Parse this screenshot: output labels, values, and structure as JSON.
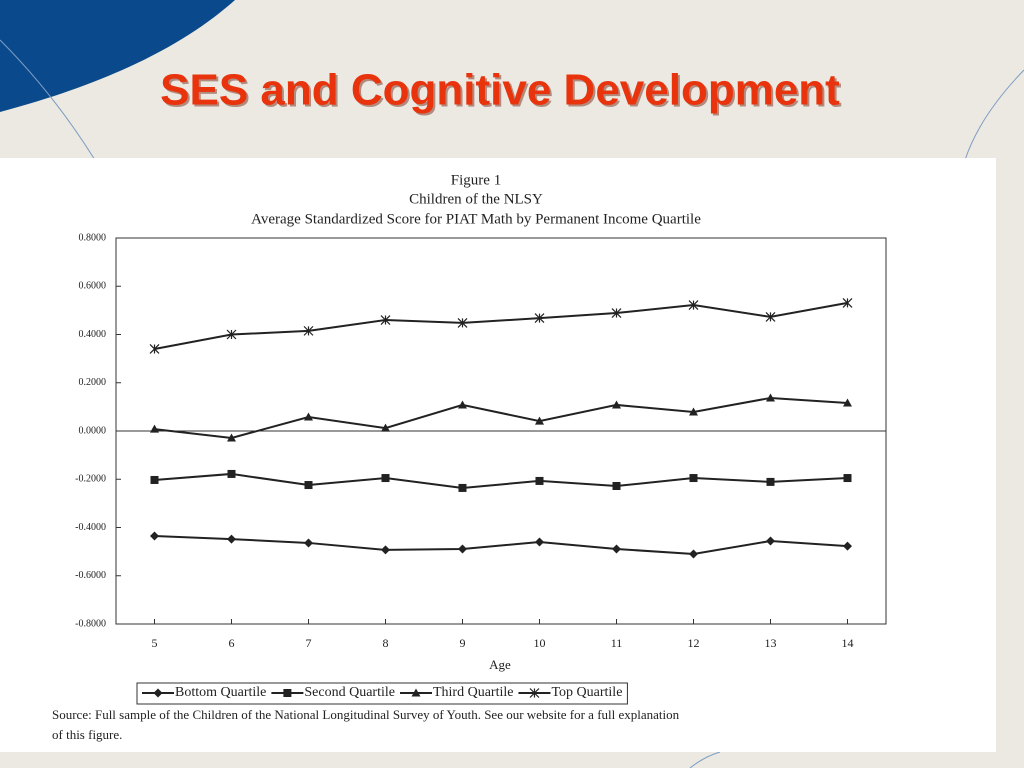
{
  "slide_title": "SES and Cognitive Development",
  "chart_data": {
    "type": "line",
    "title": "Figure 1",
    "subtitle": [
      "Children of the NLSY",
      "Average Standardized Score for PIAT Math by Permanent Income Quartile"
    ],
    "x_label": "Age",
    "x": [
      5,
      6,
      7,
      8,
      9,
      10,
      11,
      12,
      13,
      14
    ],
    "xlim": [
      4.5,
      14.5
    ],
    "xticks": [
      5,
      6,
      7,
      8,
      9,
      10,
      11,
      12,
      13,
      14
    ],
    "ylim": [
      -0.8,
      0.8
    ],
    "yticks": [
      {
        "value": 0.8,
        "label": "0.8000"
      },
      {
        "value": 0.6,
        "label": "0.6000"
      },
      {
        "value": 0.4,
        "label": "0.4000"
      },
      {
        "value": 0.2,
        "label": "0.2000"
      },
      {
        "value": 0,
        "label": "0.0000"
      },
      {
        "value": -0.2,
        "label": "-0.2000"
      },
      {
        "value": -0.4,
        "label": "-0.4000"
      },
      {
        "value": -0.6,
        "label": "-0.6000"
      },
      {
        "value": -0.8,
        "label": "-0.8000"
      }
    ],
    "zero_line": true,
    "legend": "bottom",
    "series": [
      {
        "name": "Bottom Quartile",
        "color": "#222222",
        "marker": "diamond",
        "values": [
          -0.435,
          -0.448,
          -0.464,
          -0.493,
          -0.489,
          -0.46,
          -0.489,
          -0.51,
          -0.456,
          -0.477
        ]
      },
      {
        "name": "Second Quartile",
        "color": "#222222",
        "marker": "square",
        "values": [
          -0.203,
          -0.178,
          -0.224,
          -0.195,
          -0.236,
          -0.207,
          -0.228,
          -0.195,
          -0.211,
          -0.195
        ]
      },
      {
        "name": "Third Quartile",
        "color": "#222222",
        "marker": "triangle",
        "values": [
          0.008,
          -0.029,
          0.058,
          0.012,
          0.108,
          0.041,
          0.108,
          0.079,
          0.137,
          0.116
        ]
      },
      {
        "name": "Top Quartile",
        "color": "#222222",
        "marker": "star",
        "values": [
          0.34,
          0.4,
          0.415,
          0.46,
          0.448,
          0.468,
          0.489,
          0.522,
          0.473,
          0.531
        ]
      }
    ],
    "note": [
      "Source:  Full sample of the Children of the National Longitudinal Survey of Youth.  See our website for a full explanation",
      "of this figure."
    ]
  }
}
